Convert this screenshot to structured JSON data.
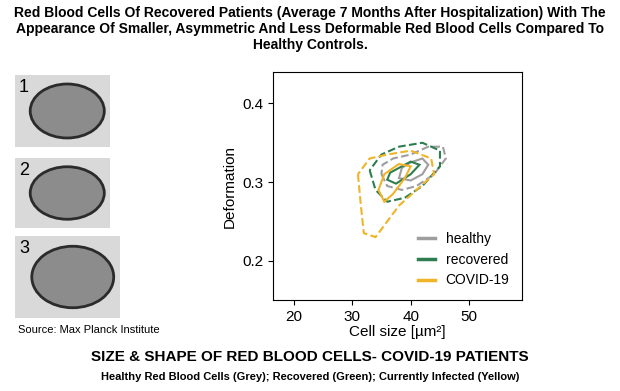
{
  "title": "Red Blood Cells Of Recovered Patients (Average 7 Months After Hospitalization) With The Appearance Of Smaller, Asymmetric And Less Deformable Red Blood Cells Compared To Healthy Controls.",
  "panels": [
    {
      "label": "1"
    },
    {
      "label": "2"
    },
    {
      "label": "3"
    }
  ],
  "source": "Source: Max Planck Institute",
  "caption": {
    "title": "SIZE & SHAPE OF RED BLOOD CELLS- COVID-19 PATIENTS",
    "subtitle": "Healthy Red Blood Cells (Grey); Recovered (Green); Currently Infected (Yellow)"
  },
  "chart_data": {
    "type": "contour",
    "xlabel": "Cell size [µm²]",
    "ylabel": "Deformation",
    "xlim": [
      16.5,
      59
    ],
    "xticks": [
      20,
      30,
      40,
      50
    ],
    "ylim": [
      0.15,
      0.44
    ],
    "yticks": [
      0.2,
      0.3,
      0.4
    ],
    "legend": "lower right",
    "series": [
      {
        "name": "healthy",
        "color": "#9e9e9e",
        "contours": [
          {
            "line_style": "dashed",
            "x": [
              35,
              36,
              38.5,
              41,
              44,
              46,
              45.5,
              43,
              40,
              37,
              35.2
            ],
            "values": [
              0.31,
              0.295,
              0.29,
              0.295,
              0.31,
              0.33,
              0.345,
              0.345,
              0.335,
              0.33,
              0.322
            ]
          },
          {
            "line_style": "solid",
            "x": [
              38,
              40,
              42,
              43,
              42,
              40,
              38.5
            ],
            "values": [
              0.305,
              0.302,
              0.31,
              0.322,
              0.33,
              0.325,
              0.318
            ]
          }
        ]
      },
      {
        "name": "recovered",
        "color": "#2e7d4f",
        "contours": [
          {
            "line_style": "dashed",
            "x": [
              33,
              34,
              36,
              39,
              42,
              45,
              45,
              42,
              38,
              35
            ],
            "values": [
              0.315,
              0.29,
              0.275,
              0.28,
              0.295,
              0.32,
              0.34,
              0.35,
              0.345,
              0.335
            ]
          },
          {
            "line_style": "solid",
            "x": [
              36,
              37.5,
              40,
              41.5,
              40,
              38,
              36.5
            ],
            "values": [
              0.303,
              0.298,
              0.31,
              0.322,
              0.326,
              0.318,
              0.312
            ]
          }
        ]
      },
      {
        "name": "COVID-19",
        "color": "#f0b429",
        "contours": [
          {
            "line_style": "dashed",
            "x": [
              31,
              31.5,
              32,
              34,
              36,
              38,
              41,
              44,
              43.5,
              40,
              36,
              33
            ],
            "values": [
              0.31,
              0.27,
              0.235,
              0.23,
              0.25,
              0.27,
              0.29,
              0.31,
              0.33,
              0.34,
              0.335,
              0.33
            ]
          },
          {
            "line_style": "solid",
            "x": [
              34.5,
              35.5,
              37,
              39,
              40,
              38,
              35.5
            ],
            "values": [
              0.29,
              0.275,
              0.285,
              0.305,
              0.32,
              0.323,
              0.31
            ]
          }
        ]
      }
    ]
  }
}
